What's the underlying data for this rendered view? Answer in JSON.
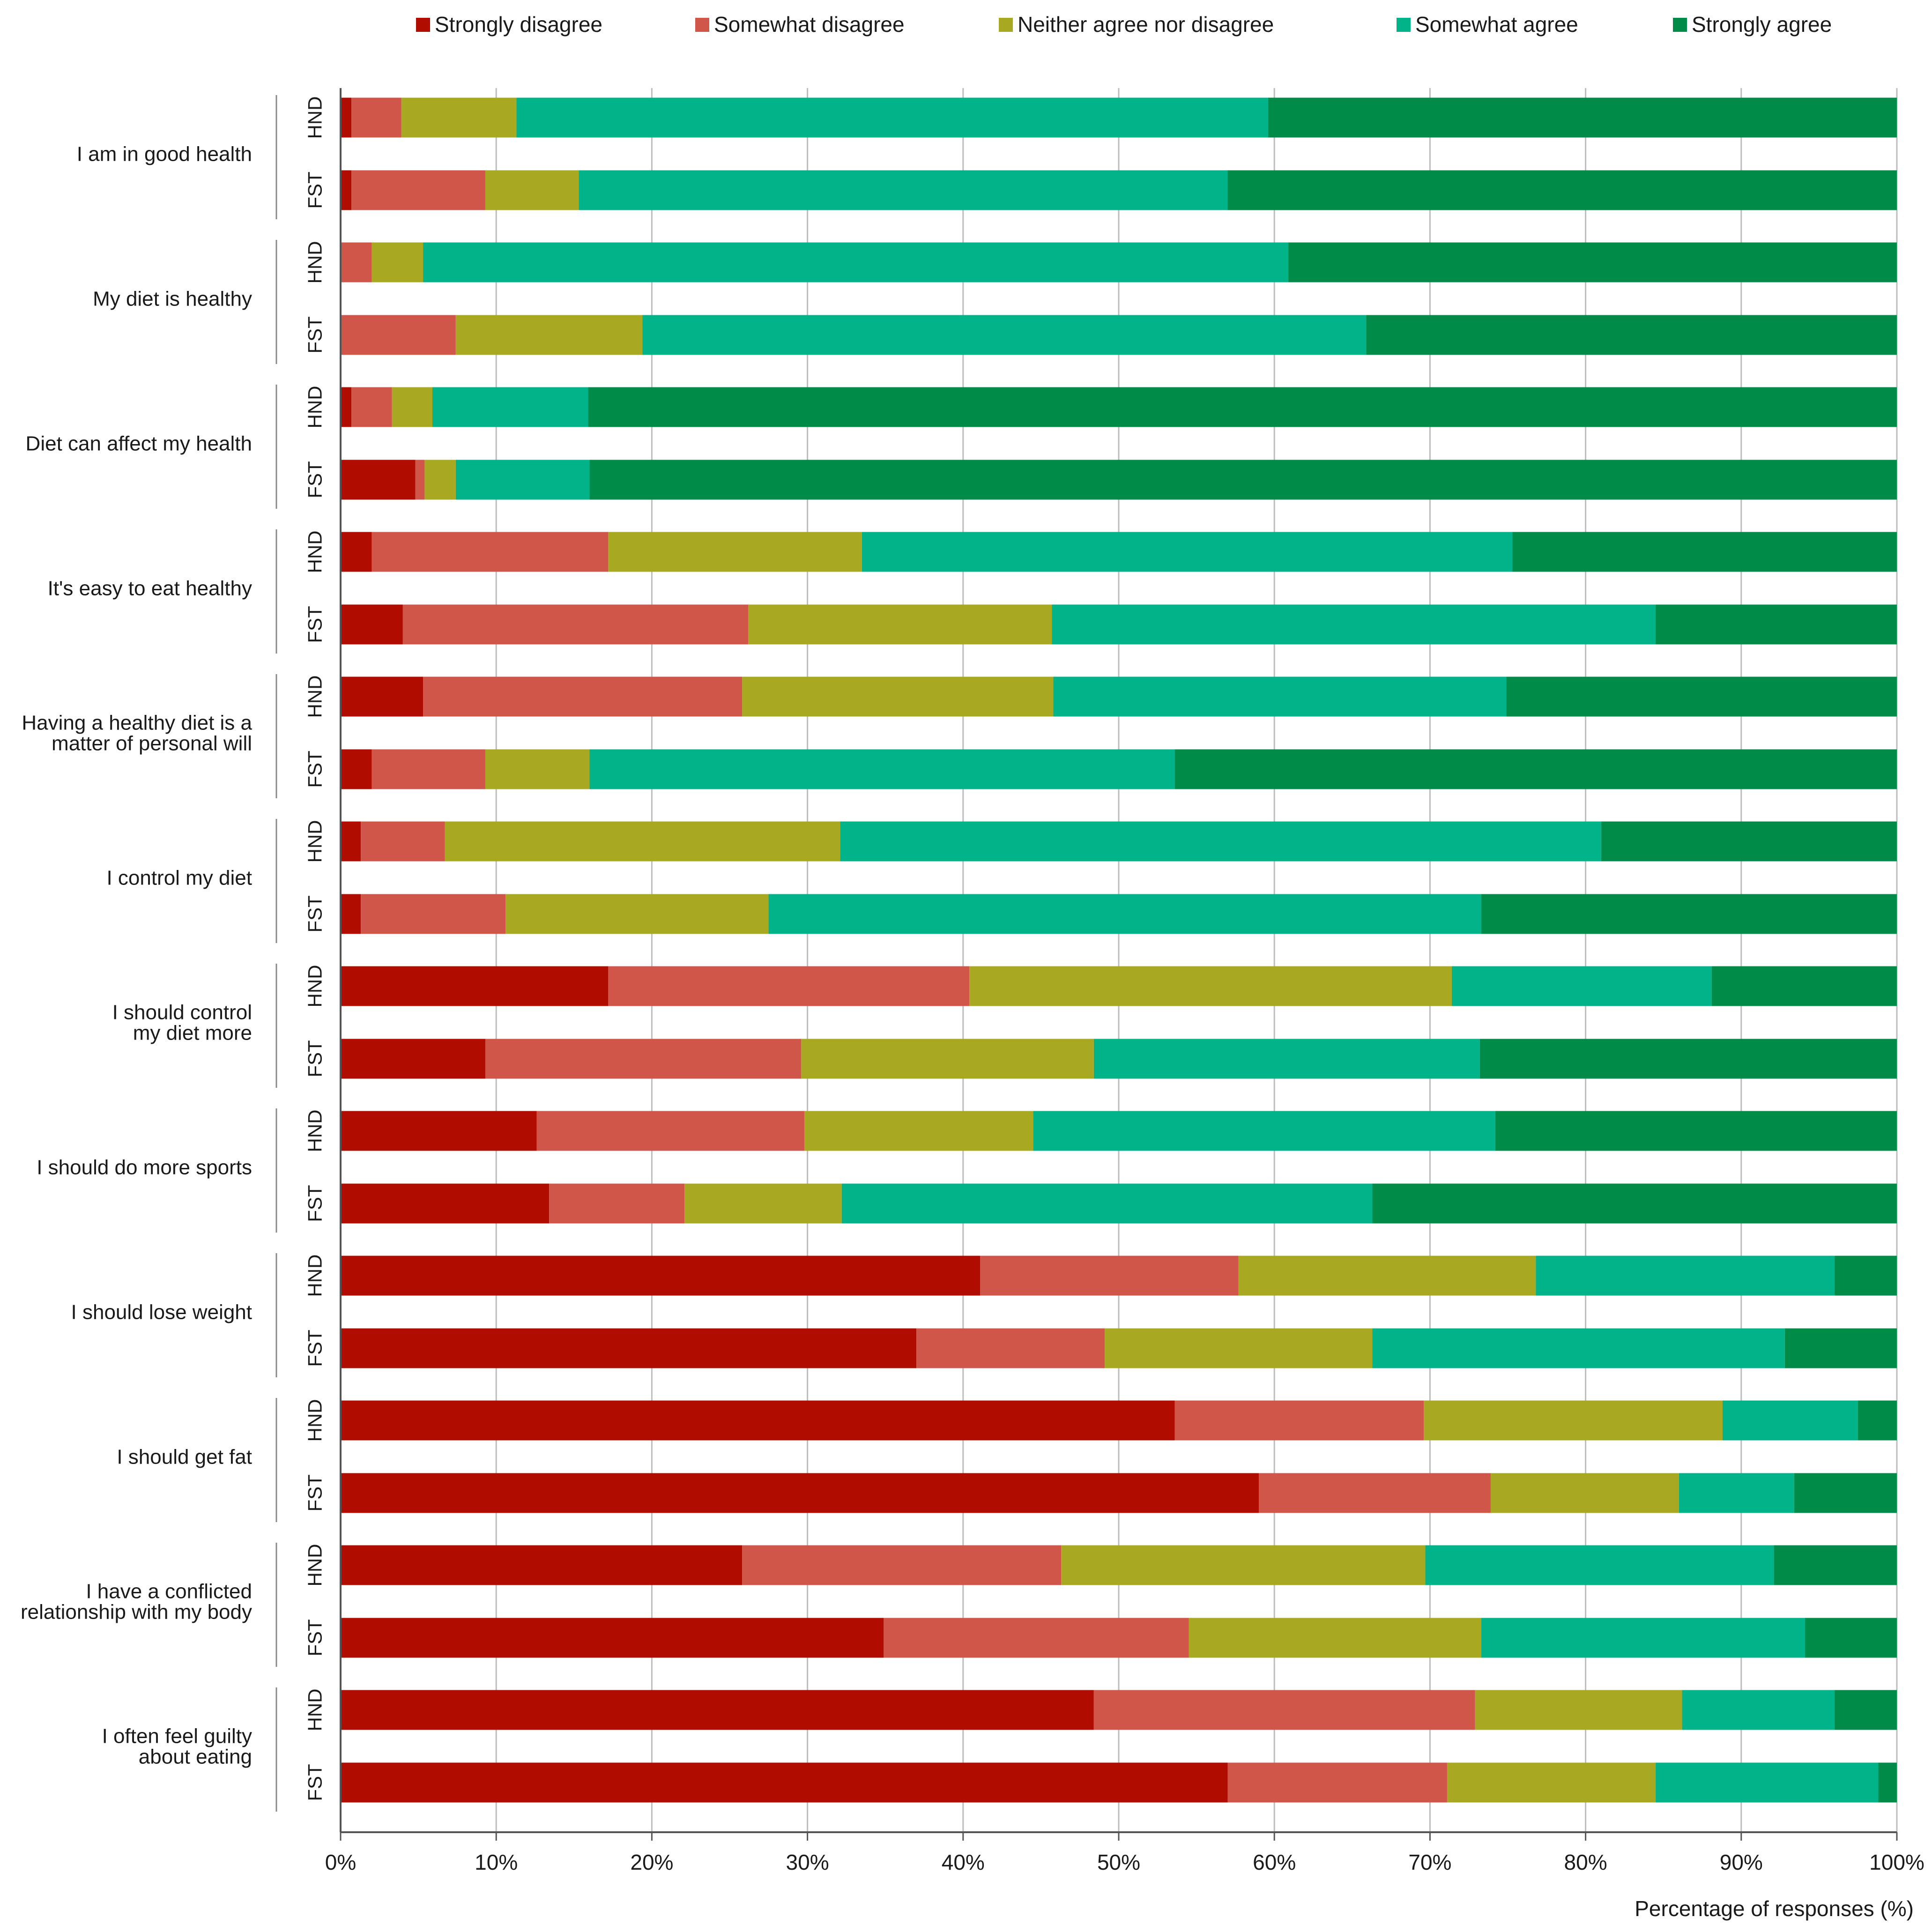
{
  "chart_data": {
    "type": "bar",
    "orientation": "horizontal",
    "stacked": "percent",
    "xlabel": "Percentage of responses (%)",
    "xlim": [
      0,
      100
    ],
    "x_ticks": [
      0,
      10,
      20,
      30,
      40,
      50,
      60,
      70,
      80,
      90,
      100
    ],
    "x_tick_labels": [
      "0%",
      "10%",
      "20%",
      "30%",
      "40%",
      "50%",
      "60%",
      "70%",
      "80%",
      "90%",
      "100%"
    ],
    "grid": "vertical",
    "legend_position": "top",
    "series": [
      {
        "name": "Strongly disagree",
        "color": "#b00c00"
      },
      {
        "name": "Somewhat disagree",
        "color": "#d1564a"
      },
      {
        "name": "Neither agree nor disagree",
        "color": "#a8a821"
      },
      {
        "name": "Somewhat agree",
        "color": "#00b388"
      },
      {
        "name": "Strongly agree",
        "color": "#008c48"
      }
    ],
    "questions": [
      {
        "label": [
          "I am in good health"
        ],
        "groups": [
          {
            "group": "HND",
            "values": [
              0.7,
              3.2,
              7.4,
              48.3,
              40.4
            ]
          },
          {
            "group": "FST",
            "values": [
              0.7,
              8.6,
              6.0,
              41.7,
              43.0
            ]
          }
        ]
      },
      {
        "label": [
          "My diet is healthy"
        ],
        "groups": [
          {
            "group": "HND",
            "values": [
              0,
              2.0,
              3.3,
              55.6,
              39.1
            ]
          },
          {
            "group": "FST",
            "values": [
              0,
              7.4,
              12.0,
              46.5,
              34.1
            ]
          }
        ]
      },
      {
        "label": [
          "Diet can affect my health"
        ],
        "groups": [
          {
            "group": "HND",
            "values": [
              0.7,
              2.6,
              2.6,
              10.0,
              84.1
            ]
          },
          {
            "group": "FST",
            "values": [
              4.8,
              0.6,
              2.0,
              8.6,
              84.0
            ]
          }
        ]
      },
      {
        "label": [
          "It's easy to eat healthy"
        ],
        "groups": [
          {
            "group": "HND",
            "values": [
              2.0,
              15.2,
              16.3,
              41.8,
              24.7
            ]
          },
          {
            "group": "FST",
            "values": [
              4.0,
              22.2,
              19.5,
              38.8,
              15.5
            ]
          }
        ]
      },
      {
        "label": [
          "Having a healthy diet is a",
          "matter of personal will"
        ],
        "groups": [
          {
            "group": "HND",
            "values": [
              5.3,
              20.5,
              20.0,
              29.1,
              25.1
            ]
          },
          {
            "group": "FST",
            "values": [
              2.0,
              7.3,
              6.7,
              37.6,
              46.4
            ]
          }
        ]
      },
      {
        "label": [
          "I control my diet"
        ],
        "groups": [
          {
            "group": "HND",
            "values": [
              1.3,
              5.4,
              25.4,
              48.9,
              19.0
            ]
          },
          {
            "group": "FST",
            "values": [
              1.3,
              9.3,
              16.9,
              45.8,
              26.7
            ]
          }
        ]
      },
      {
        "label": [
          "I should control",
          "my diet more"
        ],
        "groups": [
          {
            "group": "HND",
            "values": [
              17.2,
              23.2,
              31.0,
              16.7,
              11.9
            ]
          },
          {
            "group": "FST",
            "values": [
              9.3,
              20.3,
              18.8,
              24.8,
              26.8
            ]
          }
        ]
      },
      {
        "label": [
          "I should do more sports"
        ],
        "groups": [
          {
            "group": "HND",
            "values": [
              12.6,
              17.2,
              14.7,
              29.7,
              25.8
            ]
          },
          {
            "group": "FST",
            "values": [
              13.4,
              8.7,
              10.1,
              34.1,
              33.7
            ]
          }
        ]
      },
      {
        "label": [
          "I should lose weight"
        ],
        "groups": [
          {
            "group": "HND",
            "values": [
              41.1,
              16.6,
              19.1,
              19.2,
              4.0
            ]
          },
          {
            "group": "FST",
            "values": [
              37.0,
              12.1,
              17.2,
              26.5,
              7.2
            ]
          }
        ]
      },
      {
        "label": [
          "I should get fat"
        ],
        "groups": [
          {
            "group": "HND",
            "values": [
              53.6,
              16.0,
              19.2,
              8.7,
              2.5
            ]
          },
          {
            "group": "FST",
            "values": [
              59.0,
              14.9,
              12.1,
              7.4,
              6.6
            ]
          }
        ]
      },
      {
        "label": [
          "I have a conflicted",
          "relationship with my body"
        ],
        "groups": [
          {
            "group": "HND",
            "values": [
              25.8,
              20.5,
              23.4,
              22.4,
              7.9
            ]
          },
          {
            "group": "FST",
            "values": [
              34.9,
              19.6,
              18.8,
              20.8,
              5.9
            ]
          }
        ]
      },
      {
        "label": [
          "I often feel guilty",
          "about eating"
        ],
        "groups": [
          {
            "group": "HND",
            "values": [
              48.4,
              24.5,
              13.3,
              9.8,
              4.0
            ]
          },
          {
            "group": "FST",
            "values": [
              57.0,
              14.1,
              13.4,
              14.3,
              1.2
            ]
          }
        ]
      }
    ]
  }
}
